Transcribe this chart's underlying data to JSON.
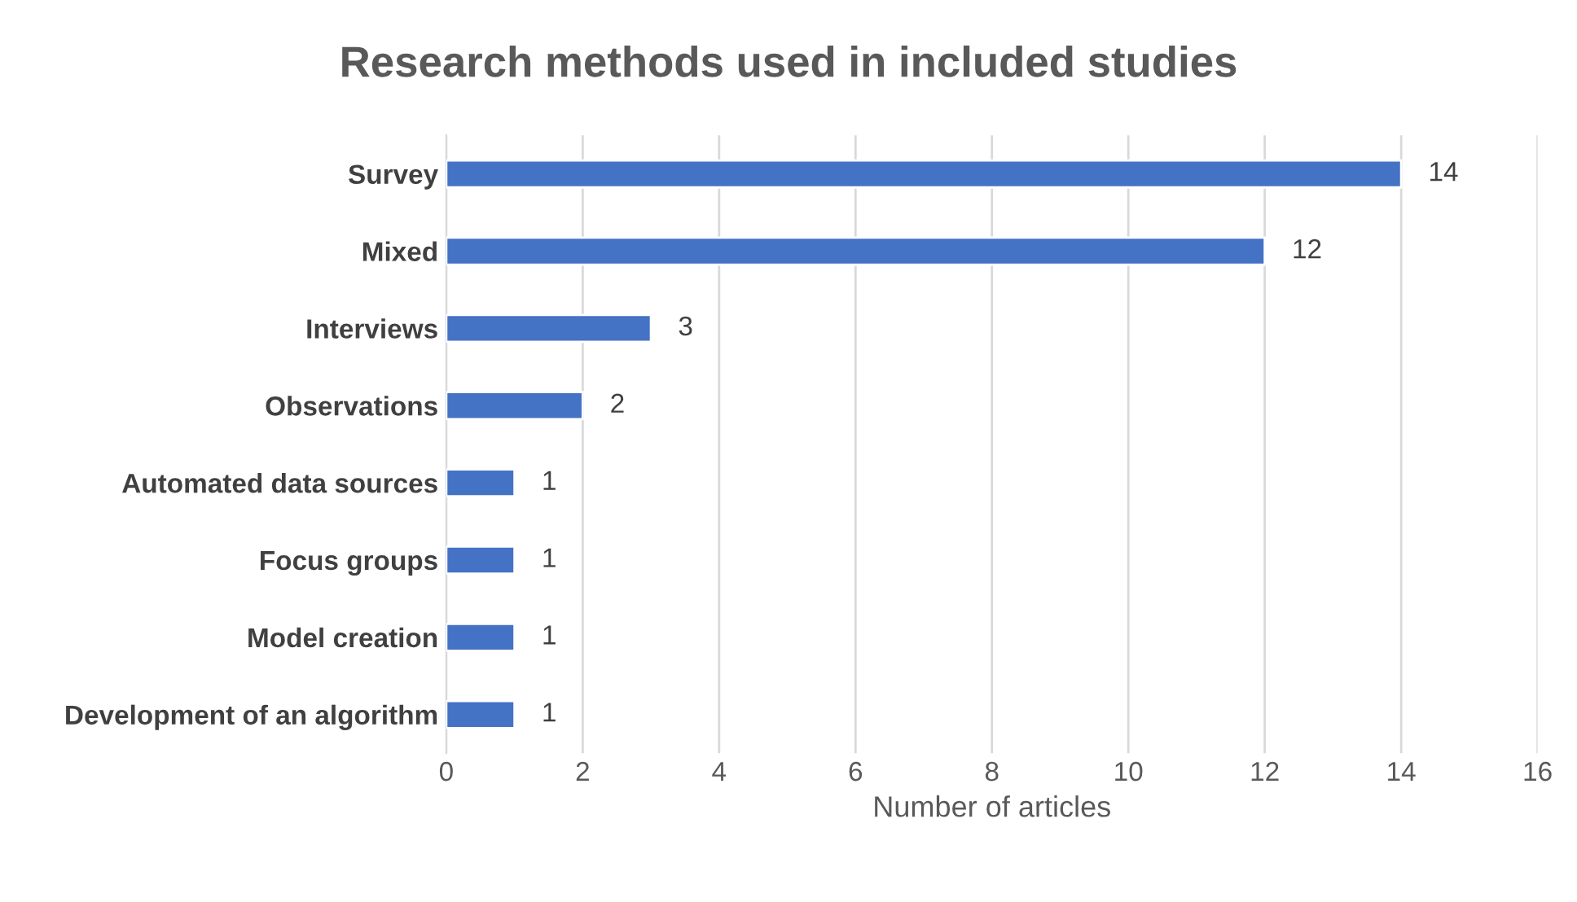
{
  "chart_data": {
    "type": "bar",
    "orientation": "horizontal",
    "title": "Research methods used in included studies",
    "xlabel": "Number of articles",
    "categories": [
      "Survey",
      "Mixed",
      "Interviews",
      "Observations",
      "Automated data sources",
      "Focus groups",
      "Model creation",
      "Development of an algorithm"
    ],
    "values": [
      14,
      12,
      3,
      2,
      1,
      1,
      1,
      1
    ],
    "color": "#4472c4",
    "xlim": [
      0,
      16
    ],
    "xticks": [
      0,
      2,
      4,
      6,
      8,
      10,
      12,
      14,
      16
    ],
    "grid": "x",
    "data_labels": true
  }
}
